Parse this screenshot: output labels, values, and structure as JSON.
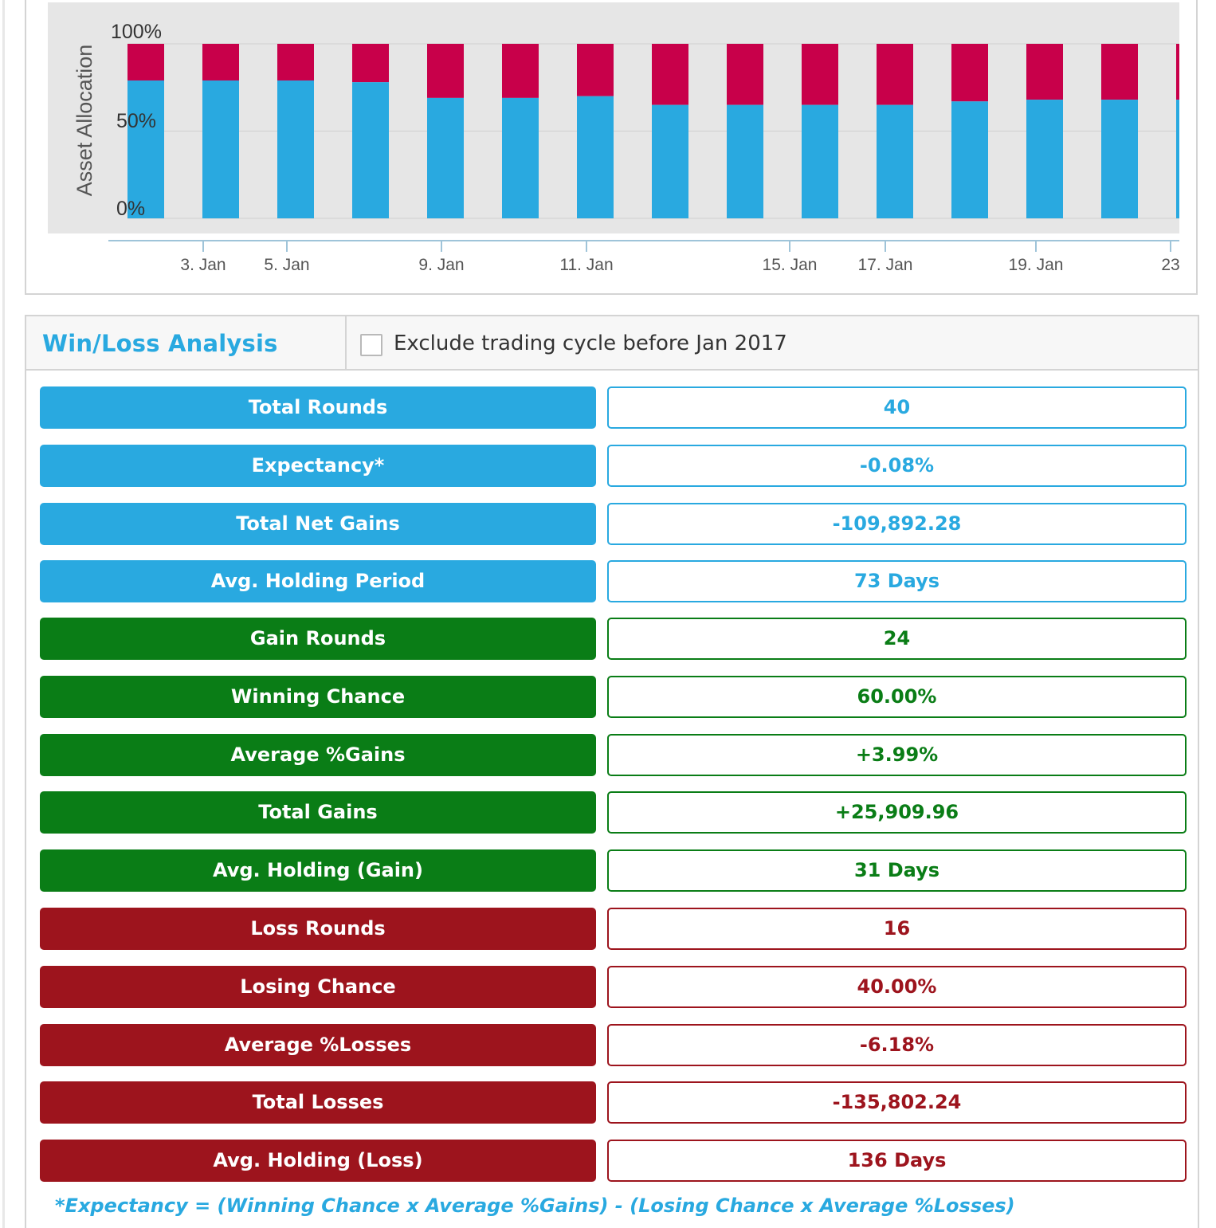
{
  "chart_data": {
    "type": "bar",
    "stacked": true,
    "ylabel": "Asset Allocation",
    "y_ticks": [
      "100%",
      "50%",
      "0%"
    ],
    "ylim": [
      0,
      100
    ],
    "x_ticks": [
      "3. Jan",
      "5. Jan",
      "9. Jan",
      "11. Jan",
      "15. Jan",
      "17. Jan",
      "19. Jan",
      "23"
    ],
    "colors": {
      "bottom": "#29a9e0",
      "top": "#c8004a",
      "plot_bg": "#e6e6e6"
    },
    "series": [
      {
        "values": [
          79,
          79,
          79,
          78,
          69,
          69,
          70,
          65,
          65,
          65,
          65,
          67,
          68,
          68,
          68
        ]
      }
    ]
  },
  "analysis": {
    "title": "Win/Loss Analysis",
    "exclude_label": "Exclude trading cycle before Jan 2017",
    "exclude_checked": false,
    "rows": [
      {
        "label": "Total Rounds",
        "value": "40",
        "group": "blue"
      },
      {
        "label": "Expectancy*",
        "value": "-0.08%",
        "group": "blue"
      },
      {
        "label": "Total Net Gains",
        "value": "-109,892.28",
        "group": "blue"
      },
      {
        "label": "Avg. Holding Period",
        "value": "73 Days",
        "group": "blue"
      },
      {
        "label": "Gain Rounds",
        "value": "24",
        "group": "green"
      },
      {
        "label": "Winning Chance",
        "value": "60.00%",
        "group": "green"
      },
      {
        "label": "Average %Gains",
        "value": "+3.99%",
        "group": "green"
      },
      {
        "label": "Total Gains",
        "value": "+25,909.96",
        "group": "green"
      },
      {
        "label": "Avg. Holding (Gain)",
        "value": "31 Days",
        "group": "green"
      },
      {
        "label": "Loss Rounds",
        "value": "16",
        "group": "red"
      },
      {
        "label": "Losing Chance",
        "value": "40.00%",
        "group": "red"
      },
      {
        "label": "Average %Losses",
        "value": "-6.18%",
        "group": "red"
      },
      {
        "label": "Total Losses",
        "value": "-135,802.24",
        "group": "red"
      },
      {
        "label": "Avg. Holding (Loss)",
        "value": "136 Days",
        "group": "red"
      }
    ],
    "footnote": "*Expectancy = (Winning Chance x Average %Gains) - (Losing Chance x Average %Losses)"
  }
}
